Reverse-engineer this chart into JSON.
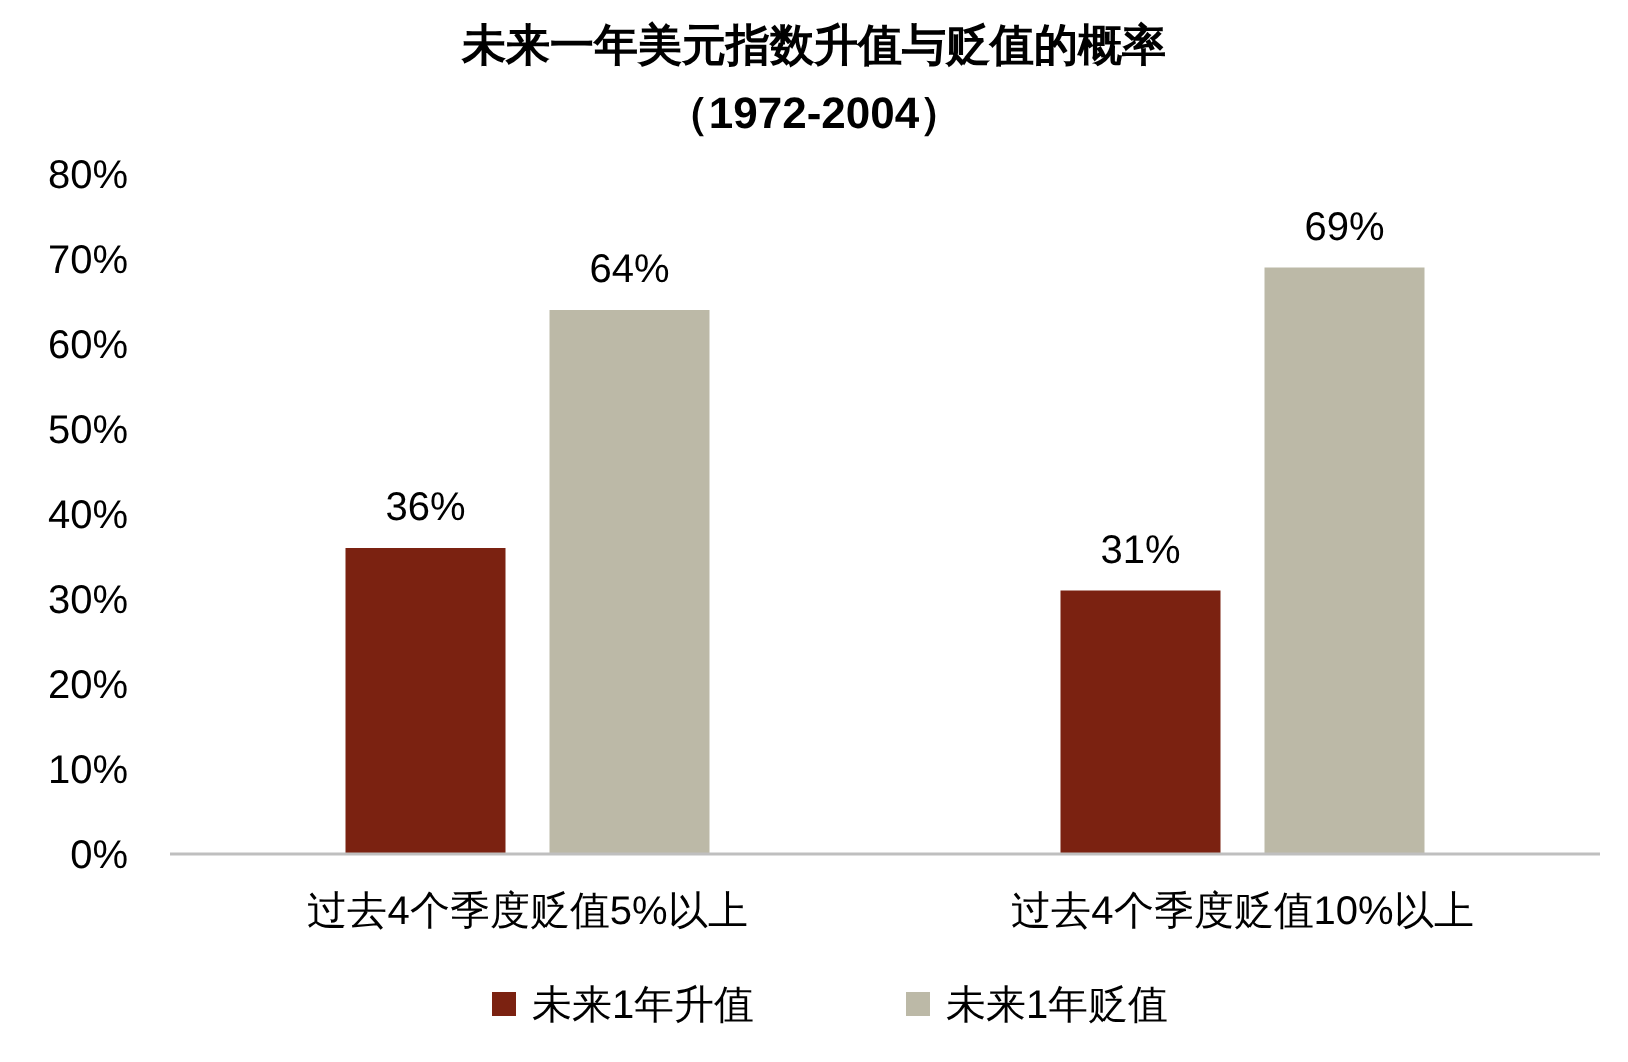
{
  "chart_data": {
    "type": "bar",
    "title": "未来一年美元指数升值与贬值的概率",
    "subtitle": "（1972-2004）",
    "categories": [
      "过去4个季度贬值5%以上",
      "过去4个季度贬值10%以上"
    ],
    "series": [
      {
        "name": "未来1年升值",
        "color": "#7b2211",
        "values": [
          36,
          31
        ],
        "value_labels": [
          "36%",
          "31%"
        ]
      },
      {
        "name": "未来1年贬值",
        "color": "#bcb9a7",
        "values": [
          64,
          69
        ],
        "value_labels": [
          "64%",
          "69%"
        ]
      }
    ],
    "ylim": [
      0,
      80
    ],
    "yticks": [
      {
        "value": 0,
        "label": "0%"
      },
      {
        "value": 10,
        "label": "10%"
      },
      {
        "value": 20,
        "label": "20%"
      },
      {
        "value": 30,
        "label": "30%"
      },
      {
        "value": 40,
        "label": "40%"
      },
      {
        "value": 50,
        "label": "50%"
      },
      {
        "value": 60,
        "label": "60%"
      },
      {
        "value": 70,
        "label": "70%"
      },
      {
        "value": 80,
        "label": "80%"
      }
    ],
    "grid": false,
    "legend": "bottom"
  }
}
